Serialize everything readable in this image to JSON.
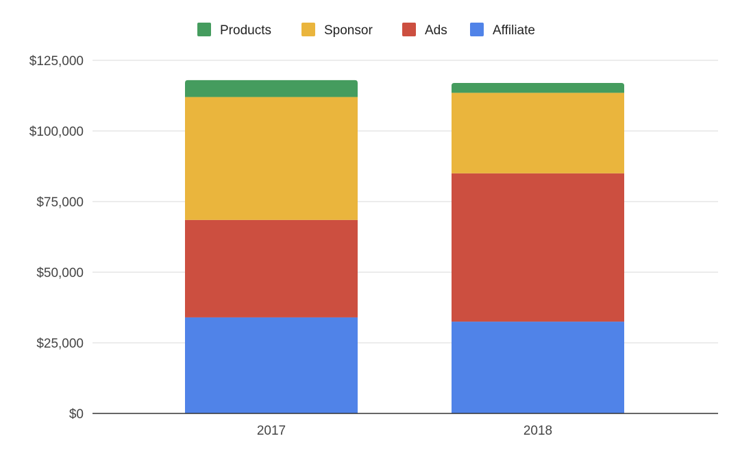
{
  "chart_data": {
    "type": "bar",
    "stacked": true,
    "categories": [
      "2017",
      "2018"
    ],
    "series": [
      {
        "name": "Affiliate",
        "values": [
          34000,
          32500
        ],
        "color": "#5083e8"
      },
      {
        "name": "Ads",
        "values": [
          34500,
          52500
        ],
        "color": "#cc4f40"
      },
      {
        "name": "Sponsor",
        "values": [
          43500,
          28500
        ],
        "color": "#eab53d"
      },
      {
        "name": "Products",
        "values": [
          6000,
          3500
        ],
        "color": "#459c5e"
      }
    ],
    "legend_order": [
      "Products",
      "Sponsor",
      "Ads",
      "Affiliate"
    ],
    "legend_position": "top",
    "ylim": [
      0,
      125000
    ],
    "yticks": [
      0,
      25000,
      50000,
      75000,
      100000,
      125000
    ],
    "ytick_labels": [
      "$0",
      "$25,000",
      "$50,000",
      "$75,000",
      "$100,000",
      "$125,000"
    ],
    "grid": true,
    "title": "",
    "xlabel": "",
    "ylabel": ""
  }
}
